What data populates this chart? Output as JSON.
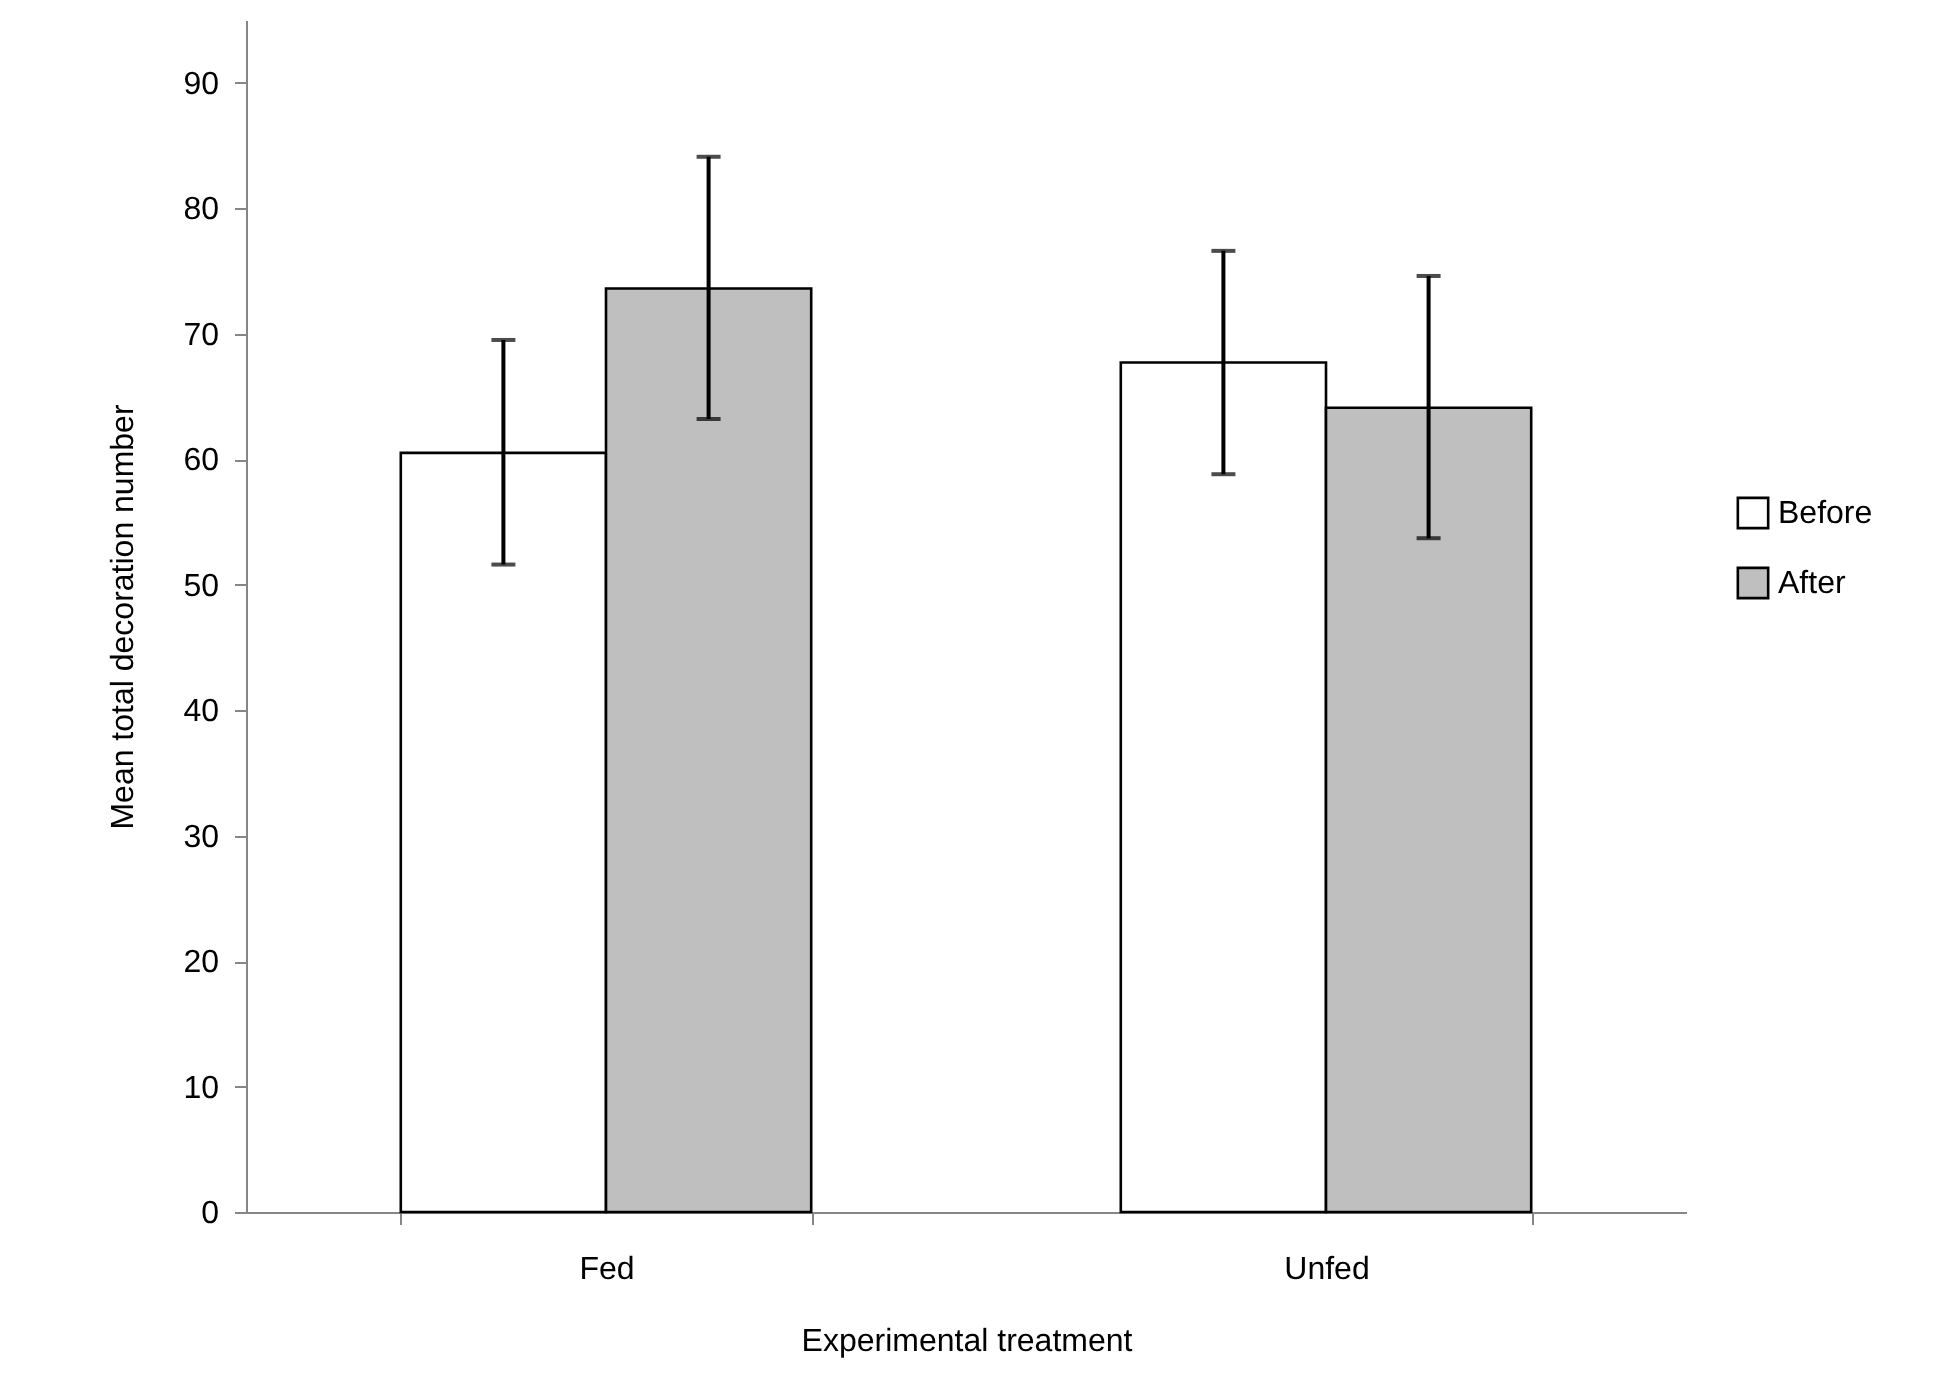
{
  "chart_data": {
    "type": "bar",
    "xlabel": "Experimental treatment",
    "ylabel": "Mean total decoration number",
    "categories": [
      "Fed",
      "Unfed"
    ],
    "series": [
      {
        "name": "Before",
        "color": "#ffffff",
        "values": [
          60.5,
          67.7
        ],
        "errors": [
          [
            51.6,
            69.5
          ],
          [
            58.8,
            76.6
          ]
        ]
      },
      {
        "name": "After",
        "color": "#bfbfbf",
        "values": [
          73.6,
          64.1
        ],
        "errors": [
          [
            63.2,
            84.1
          ],
          [
            53.7,
            74.6
          ]
        ]
      }
    ],
    "ylim": [
      0,
      95
    ],
    "yticks": [
      0,
      10,
      20,
      30,
      40,
      50,
      60,
      70,
      80,
      90
    ],
    "grid": false,
    "legend": "right"
  }
}
